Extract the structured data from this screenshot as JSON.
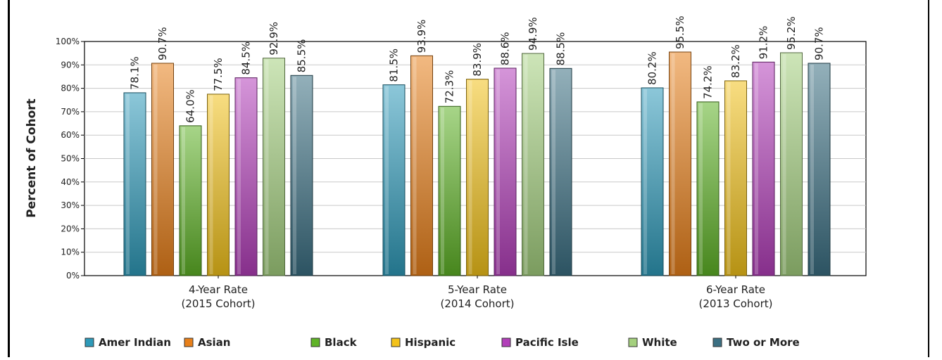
{
  "chart_data": {
    "type": "bar",
    "ylabel": "Percent of Cohort",
    "ylim": [
      0,
      100
    ],
    "y_ticks": [
      "0%",
      "10%",
      "20%",
      "30%",
      "40%",
      "50%",
      "60%",
      "70%",
      "80%",
      "90%",
      "100%"
    ],
    "grid": true,
    "legend_position": "bottom",
    "categories": [
      [
        "4-Year Rate",
        "(2015 Cohort)"
      ],
      [
        "5-Year Rate",
        "(2014 Cohort)"
      ],
      [
        "6-Year Rate",
        "(2013 Cohort)"
      ]
    ],
    "series": [
      {
        "name": "Amer Indian",
        "color": "#2e9ab9",
        "values": [
          78.1,
          81.5,
          80.2
        ],
        "labels": [
          "78.1%",
          "81.5%",
          "80.2%"
        ]
      },
      {
        "name": "Asian",
        "color": "#e8801a",
        "values": [
          90.7,
          93.9,
          95.5
        ],
        "labels": [
          "90.7%",
          "93.9%",
          "95.5%"
        ]
      },
      {
        "name": "Black",
        "color": "#5fb327",
        "values": [
          64.0,
          72.3,
          74.2
        ],
        "labels": [
          "64.0%",
          "72.3%",
          "74.2%"
        ]
      },
      {
        "name": "Hispanic",
        "color": "#f3c21a",
        "values": [
          77.5,
          83.9,
          83.2
        ],
        "labels": [
          "77.5%",
          "83.9%",
          "83.2%"
        ]
      },
      {
        "name": "Pacific Isle",
        "color": "#b23fb9",
        "values": [
          84.5,
          88.6,
          91.2
        ],
        "labels": [
          "84.5%",
          "88.6%",
          "91.2%"
        ]
      },
      {
        "name": "White",
        "color": "#a4d07e",
        "values": [
          92.9,
          94.9,
          95.2
        ],
        "labels": [
          "92.9%",
          "94.9%",
          "95.2%"
        ]
      },
      {
        "name": "Two or More",
        "color": "#3b6f82",
        "values": [
          85.5,
          88.5,
          90.7
        ],
        "labels": [
          "85.5%",
          "88.5%",
          "90.7%"
        ]
      }
    ]
  }
}
